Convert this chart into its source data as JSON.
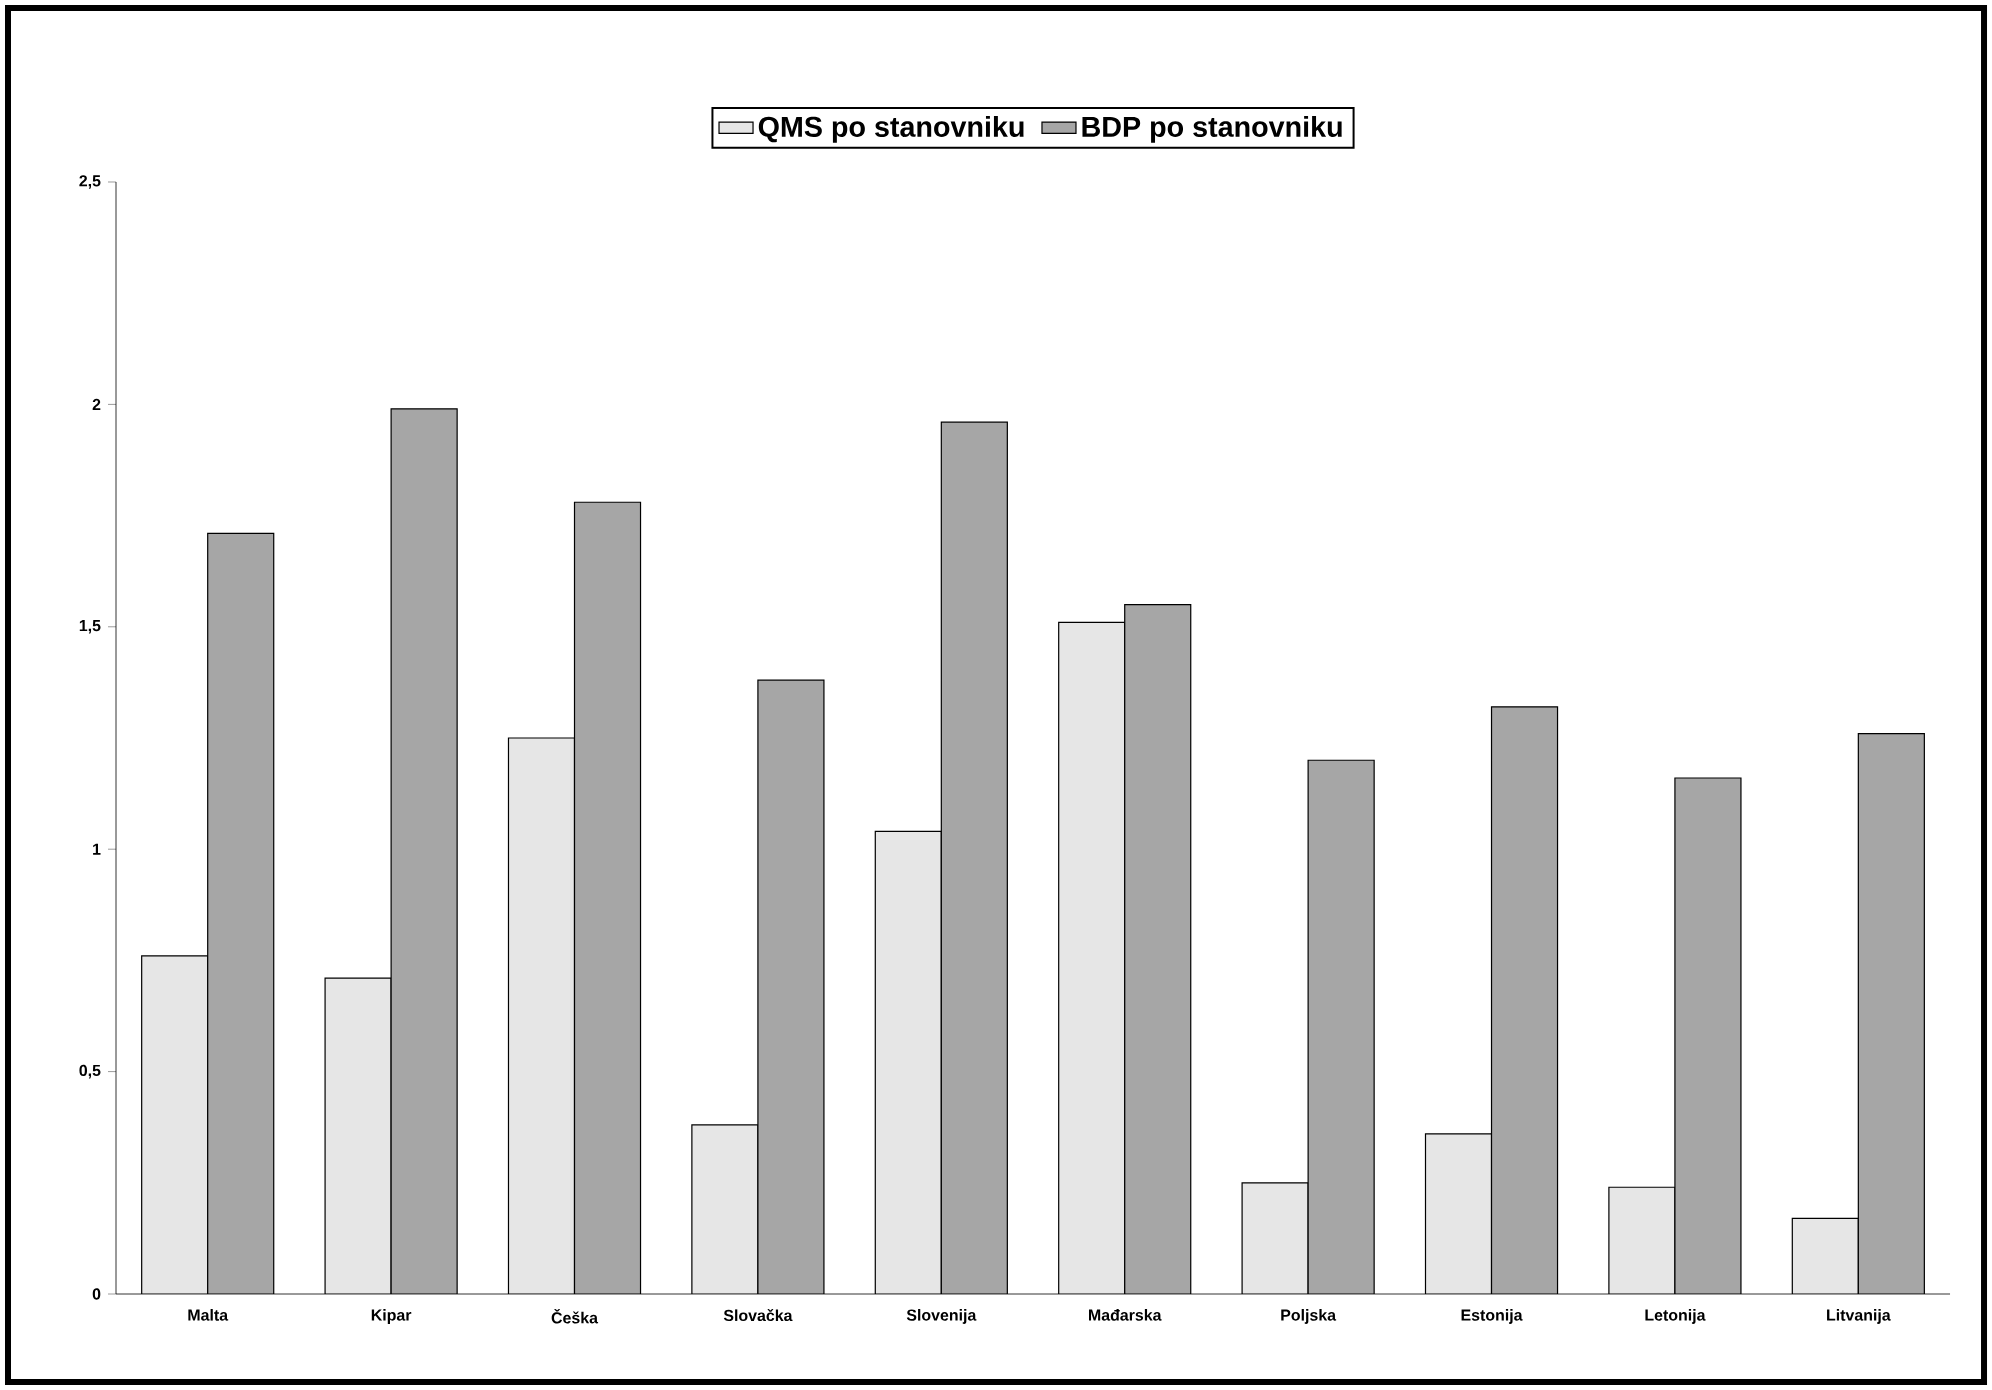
{
  "chart_data": {
    "type": "bar",
    "categories": [
      "Malta",
      "Kipar",
      "Češka",
      "Slovačka",
      "Slovenija",
      "Mađarska",
      "Poljska",
      "Estonija",
      "Letonija",
      "Litvanija"
    ],
    "series": [
      {
        "name": "QMS po stanovniku",
        "color": "#e6e6e6",
        "values": [
          0.76,
          0.71,
          1.25,
          0.38,
          1.04,
          1.51,
          0.25,
          0.36,
          0.24,
          0.17
        ]
      },
      {
        "name": "BDP po stanovniku",
        "color": "#a6a6a6",
        "values": [
          1.71,
          1.99,
          1.78,
          1.38,
          1.96,
          1.55,
          1.2,
          1.32,
          1.16,
          1.26
        ]
      }
    ],
    "ylim": [
      0,
      2.5
    ],
    "yticks": [
      0,
      {
        "value": 0.5,
        "label": "0,5"
      },
      1,
      {
        "value": 1.5,
        "label": "1,5"
      },
      2,
      {
        "value": 2.5,
        "label": "2,5"
      }
    ],
    "legend": "top"
  }
}
